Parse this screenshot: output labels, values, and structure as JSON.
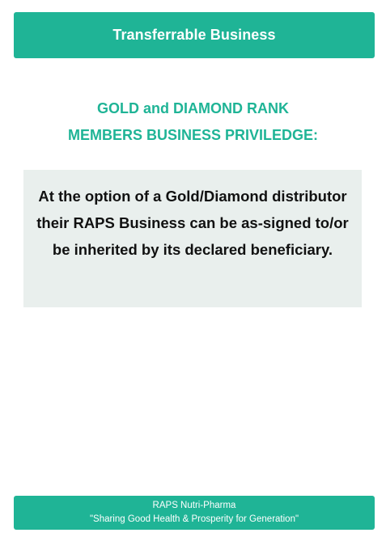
{
  "header": {
    "title": "Transferrable Business"
  },
  "heading": {
    "line1": "GOLD and DIAMOND RANK",
    "line2": "MEMBERS BUSINESS  PRIVILEDGE:"
  },
  "info": {
    "text": "At the option of a Gold/Diamond distributor their RAPS Business can be as-signed to/or be inherited by its declared beneficiary."
  },
  "footer": {
    "company": "RAPS Nutri-Pharma",
    "tagline": "\"Sharing Good Health & Prosperity for Generation\""
  },
  "colors": {
    "brand": "#1fb496",
    "box_background": "#e9efed",
    "text_dark": "#111111"
  }
}
